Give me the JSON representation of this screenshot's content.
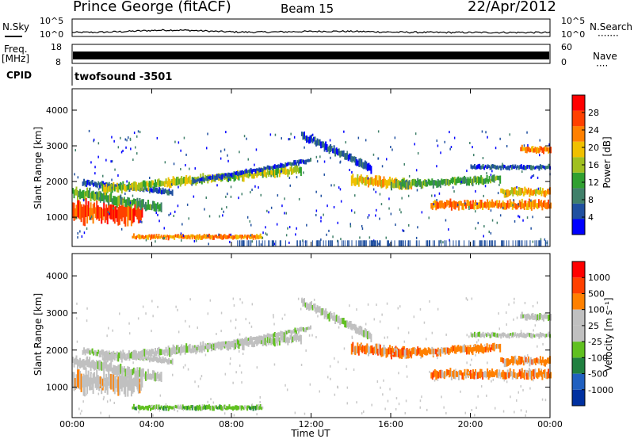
{
  "header": {
    "station": "Prince George (fitACF)",
    "beam": "Beam 15",
    "date": "22/Apr/2012"
  },
  "side_labels": {
    "nsky": "N.Sky",
    "freq": "Freq.",
    "freq_unit": "[MHz]",
    "cpid": "CPID",
    "nsearch": "N.Search",
    "nave": "Nave",
    "dots_nsearch": "·······",
    "dots_nave": "····"
  },
  "mode": "twofsound  -3501",
  "colors": {
    "power_scale": [
      "#0000ff",
      "#2050a0",
      "#40806a",
      "#30a030",
      "#a0c020",
      "#f0c000",
      "#ff8000",
      "#ff4000",
      "#ff0000"
    ],
    "velocity_scale": [
      "#0030a0",
      "#2060c0",
      "#208040",
      "#60c020",
      "#c0c0c0",
      "#c0c0c0",
      "#ff8000",
      "#ff4000",
      "#ff0000"
    ]
  },
  "chart_data": [
    {
      "type": "line",
      "name": "noise-panel",
      "ylabels_left": [
        "10^5",
        "10^0"
      ],
      "ylabels_right": [
        "10^5",
        "10^0"
      ],
      "xlim": [
        0,
        24
      ]
    },
    {
      "type": "bar",
      "name": "frequency-panel",
      "yticks_left": [
        "18",
        "8"
      ],
      "yticks_right": [
        "60",
        "0"
      ],
      "note": "continuous dense band"
    },
    {
      "type": "heatmap",
      "name": "power-panel",
      "ylabel": "Slant Range [km]",
      "yticks": [
        1000,
        2000,
        3000,
        4000
      ],
      "ylim": [
        180,
        4600
      ],
      "colorbar_label": "Power [dB]",
      "colorbar_ticks": [
        "4",
        "8",
        "12",
        "16",
        "20",
        "24",
        "28"
      ]
    },
    {
      "type": "heatmap",
      "name": "velocity-panel",
      "ylabel": "Slant Range [km]",
      "yticks": [
        1000,
        2000,
        3000,
        4000
      ],
      "ylim": [
        180,
        4600
      ],
      "colorbar_label": "Velocity [m s⁻¹]",
      "colorbar_ticks": [
        "1000",
        "500",
        "100",
        "25",
        "-25",
        "-100",
        "-500",
        "-1000"
      ]
    }
  ],
  "xaxis": {
    "label": "Time UT",
    "ticks": [
      "00:00",
      "04:00",
      "08:00",
      "12:00",
      "16:00",
      "20:00",
      "00:00"
    ]
  }
}
